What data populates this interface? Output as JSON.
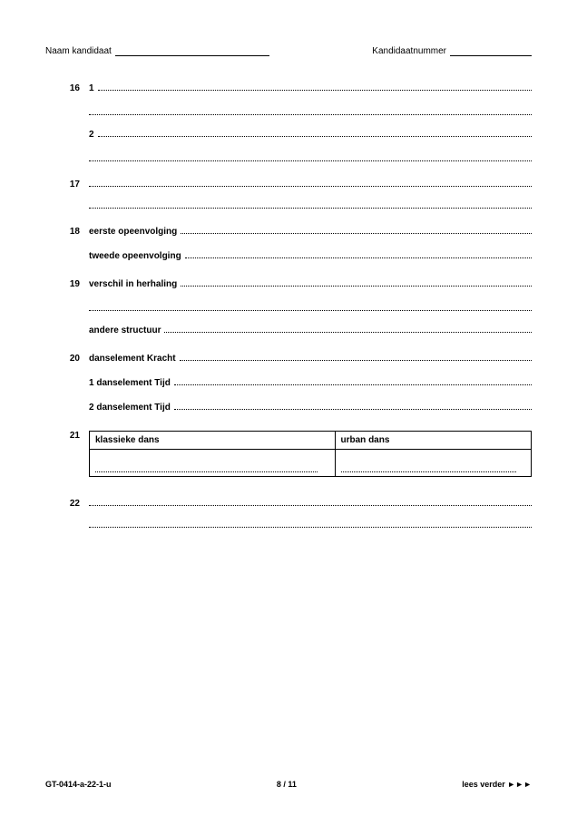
{
  "header": {
    "name_label": "Naam kandidaat",
    "number_label": "Kandidaatnummer",
    "name_underline_width": 170,
    "number_underline_width": 90
  },
  "questions": [
    {
      "num": "16",
      "lines": [
        {
          "prefix": "1"
        },
        {
          "prefix": ""
        },
        {
          "prefix": "2"
        },
        {
          "prefix": ""
        }
      ]
    },
    {
      "num": "17",
      "lines": [
        {
          "prefix": ""
        },
        {
          "prefix": ""
        }
      ]
    },
    {
      "num": "18",
      "lines": [
        {
          "prefix": "eerste opeenvolging"
        },
        {
          "prefix": "tweede opeenvolging"
        }
      ]
    },
    {
      "num": "19",
      "lines": [
        {
          "prefix": "verschil in herhaling"
        },
        {
          "prefix": ""
        },
        {
          "prefix": "andere structuur"
        }
      ]
    },
    {
      "num": "20",
      "lines": [
        {
          "prefix": "danselement Kracht"
        },
        {
          "prefix": "1 danselement Tijd"
        },
        {
          "prefix": "2 danselement Tijd"
        }
      ]
    },
    {
      "num": "21",
      "table": {
        "headers": [
          "klassieke dans",
          "urban dans"
        ],
        "rows": 1
      }
    },
    {
      "num": "22",
      "lines": [
        {
          "prefix": ""
        },
        {
          "prefix": ""
        }
      ]
    }
  ],
  "footer": {
    "left": "GT-0414-a-22-1-u",
    "center": "8 / 11",
    "right": "lees verder ►►►"
  }
}
